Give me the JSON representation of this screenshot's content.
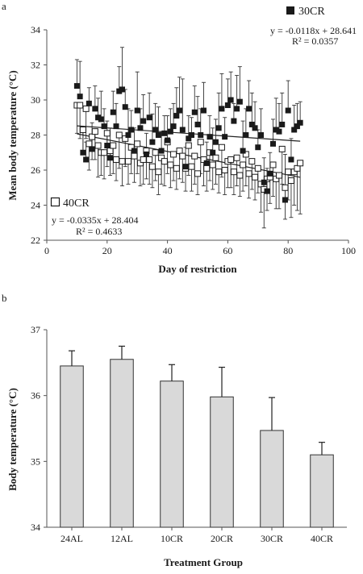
{
  "chart_data": [
    {
      "panel_label": "a",
      "type": "scatter",
      "xlabel": "Day of restriction",
      "ylabel": "Mean body temperature (°C)",
      "xlim": [
        0,
        100
      ],
      "ylim": [
        22,
        34
      ],
      "xticks": [
        "0",
        "20",
        "40",
        "60",
        "80",
        "100"
      ],
      "yticks": [
        "22",
        "24",
        "26",
        "28",
        "30",
        "32",
        "34"
      ],
      "grid": false,
      "series": [
        {
          "name": "30CR",
          "marker": "filled-square",
          "color": "#1a1a1a",
          "equation": "y = -0.0118x + 28.641",
          "r2": "R² = 0.0357",
          "trend": {
            "slope": -0.0118,
            "intercept": 28.641,
            "x_range": [
              10,
              84
            ]
          },
          "x": [
            10,
            11,
            12,
            13,
            14,
            15,
            16,
            17,
            18,
            19,
            20,
            21,
            22,
            23,
            24,
            25,
            26,
            27,
            28,
            29,
            30,
            31,
            32,
            33,
            34,
            35,
            36,
            37,
            38,
            39,
            40,
            41,
            42,
            43,
            44,
            45,
            46,
            47,
            48,
            49,
            50,
            51,
            52,
            53,
            54,
            55,
            56,
            57,
            58,
            59,
            60,
            61,
            62,
            63,
            64,
            65,
            66,
            67,
            68,
            69,
            70,
            71,
            72,
            73,
            74,
            75,
            76,
            77,
            78,
            79,
            80,
            81,
            82,
            83,
            84
          ],
          "y": [
            30.8,
            30.2,
            27.0,
            26.6,
            29.8,
            27.2,
            29.5,
            29.0,
            28.9,
            28.5,
            27.4,
            26.7,
            29.3,
            28.5,
            30.5,
            30.6,
            29.6,
            28.0,
            28.3,
            27.1,
            29.4,
            28.4,
            28.8,
            26.9,
            29.0,
            27.6,
            28.3,
            28.0,
            27.1,
            28.1,
            27.7,
            28.2,
            28.5,
            29.1,
            29.4,
            28.3,
            26.2,
            27.8,
            28.0,
            29.3,
            28.6,
            28.0,
            29.4,
            26.4,
            27.9,
            27.0,
            27.6,
            28.4,
            29.5,
            27.9,
            29.7,
            30.0,
            28.8,
            29.5,
            29.9,
            27.1,
            28.0,
            29.5,
            28.6,
            28.4,
            27.3,
            28.0,
            25.3,
            24.8,
            25.8,
            27.5,
            28.3,
            28.2,
            28.6,
            24.3,
            29.4,
            26.6,
            28.3,
            28.5,
            28.7
          ],
          "error_upper": [
            1.5,
            2.0,
            1.2,
            1.0,
            0.9,
            1.5,
            1.3,
            1.1,
            1.6,
            1.0,
            1.4,
            1.7,
            1.2,
            1.3,
            1.4,
            2.4,
            1.0,
            1.5,
            1.1,
            1.3,
            2.2,
            1.1,
            1.5,
            1.2,
            1.4,
            1.6,
            1.5,
            1.6,
            1.1,
            1.0,
            1.4,
            1.3,
            1.3,
            1.6,
            1.9,
            2.9,
            1.1,
            1.3,
            1.0,
            1.5,
            1.6,
            1.5,
            1.6,
            1.2,
            1.2,
            1.4,
            1.3,
            2.0,
            2.0,
            1.1,
            1.5,
            1.6,
            1.0,
            1.9,
            2.0,
            1.7,
            1.5,
            1.6,
            1.8,
            1.5,
            1.0,
            1.5,
            1.4,
            1.3,
            1.2,
            1.4,
            1.8,
            1.6,
            1.8,
            2.6,
            1.7,
            1.2,
            1.4,
            1.3,
            1.2
          ]
        },
        {
          "name": "40CR",
          "marker": "open-square",
          "color": "#1a1a1a",
          "equation": "y = -0.0335x + 28.404",
          "r2": "R² = 0.4633",
          "trend": {
            "slope": -0.0335,
            "intercept": 28.404,
            "x_range": [
              10,
              84
            ]
          },
          "x": [
            10,
            11,
            12,
            13,
            14,
            15,
            16,
            17,
            18,
            19,
            20,
            21,
            22,
            23,
            24,
            25,
            26,
            27,
            28,
            29,
            30,
            31,
            32,
            33,
            34,
            35,
            36,
            37,
            38,
            39,
            40,
            41,
            42,
            43,
            44,
            45,
            46,
            47,
            48,
            49,
            50,
            51,
            52,
            53,
            54,
            55,
            56,
            57,
            58,
            59,
            60,
            61,
            62,
            63,
            64,
            65,
            66,
            67,
            68,
            69,
            70,
            71,
            72,
            73,
            74,
            75,
            76,
            77,
            78,
            79,
            80,
            81,
            82,
            83,
            84
          ],
          "y": [
            29.7,
            29.7,
            28.3,
            29.5,
            27.5,
            27.9,
            28.2,
            27.4,
            27.0,
            27.0,
            28.1,
            27.1,
            27.4,
            26.6,
            28.0,
            26.5,
            27.8,
            26.5,
            27.3,
            26.8,
            27.5,
            26.4,
            26.6,
            27.1,
            26.6,
            26.2,
            27.0,
            25.9,
            26.7,
            26.5,
            27.6,
            26.3,
            26.9,
            26.1,
            27.1,
            26.8,
            26.1,
            27.4,
            26.2,
            26.8,
            25.8,
            27.6,
            26.6,
            26.1,
            27.0,
            26.3,
            26.7,
            25.9,
            27.3,
            26.0,
            26.5,
            26.6,
            25.9,
            26.7,
            25.7,
            26.3,
            26.9,
            25.8,
            26.5,
            25.6,
            26.1,
            25.2,
            24.9,
            25.5,
            25.6,
            26.3,
            25.5,
            25.7,
            27.2,
            25.0,
            25.9,
            25.4,
            25.9,
            26.1,
            26.4
          ],
          "error_lower": [
            1.6,
            1.9,
            1.4,
            1.7,
            1.5,
            1.3,
            1.6,
            1.8,
            1.3,
            1.5,
            1.9,
            1.4,
            1.6,
            1.2,
            1.9,
            1.4,
            1.6,
            1.3,
            1.5,
            1.5,
            1.7,
            1.3,
            1.4,
            1.6,
            1.4,
            1.2,
            1.6,
            1.3,
            1.5,
            1.4,
            1.8,
            1.3,
            1.5,
            1.2,
            1.6,
            1.5,
            1.3,
            1.7,
            1.4,
            1.6,
            1.2,
            1.8,
            1.5,
            1.3,
            1.6,
            1.4,
            1.5,
            1.2,
            1.7,
            1.4,
            1.5,
            1.6,
            1.3,
            1.6,
            1.2,
            1.5,
            1.8,
            1.4,
            1.6,
            1.3,
            1.4,
            1.6,
            2.2,
            1.8,
            1.5,
            1.8,
            1.7,
            1.9,
            2.0,
            1.8,
            1.6,
            2.1,
            1.9,
            2.4,
            2.9
          ]
        }
      ]
    },
    {
      "panel_label": "b",
      "type": "bar",
      "xlabel": "Treatment Group",
      "ylabel": "Body temperature (°C)",
      "ylim": [
        34,
        37
      ],
      "yticks": [
        "34",
        "35",
        "36",
        "37"
      ],
      "grid": false,
      "categories": [
        "24AL",
        "12AL",
        "10CR",
        "20CR",
        "30CR",
        "40CR"
      ],
      "values": [
        36.45,
        36.55,
        36.22,
        35.98,
        35.47,
        35.1
      ],
      "errors": [
        0.23,
        0.2,
        0.25,
        0.45,
        0.5,
        0.19
      ],
      "bar_color": "#d9d9d9"
    }
  ]
}
